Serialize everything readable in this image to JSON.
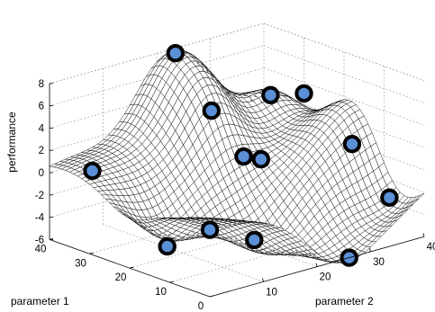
{
  "chart_data": {
    "type": "surface",
    "title": "",
    "zlabel": "performance",
    "xlabel": "parameter 1",
    "ylabel": "parameter 2",
    "zlim": [
      -6,
      8
    ],
    "xlim": [
      0,
      40
    ],
    "ylim": [
      0,
      40
    ],
    "z_ticks": [
      "8",
      "6",
      "4",
      "2",
      "0",
      "-2",
      "-4",
      "-6"
    ],
    "x_ticks": [
      "40",
      "30",
      "20",
      "10",
      "0"
    ],
    "y_ticks": [
      "10",
      "20",
      "30",
      "40"
    ],
    "grid": true,
    "surface_color": "#000000",
    "sample_points": {
      "marker_fill": "#5b8fd6",
      "marker_edge": "#000000",
      "points": [
        {
          "p1": 0,
          "p2": 0,
          "performance": 0
        },
        {
          "p1": 36,
          "p2": 5,
          "performance": 0
        },
        {
          "p1": 38,
          "p2": 22,
          "performance": 8
        },
        {
          "p1": 20,
          "p2": 7,
          "performance": -5
        },
        {
          "p1": 29,
          "p2": 22,
          "performance": 4
        },
        {
          "p1": 25,
          "p2": 25,
          "performance": 0
        },
        {
          "p1": 13,
          "p2": 18,
          "performance": -5
        },
        {
          "p1": 22,
          "p2": 26,
          "performance": 0
        },
        {
          "p1": 33,
          "p2": 36,
          "performance": 3
        },
        {
          "p1": 30,
          "p2": 40,
          "performance": 3
        },
        {
          "p1": 18,
          "p2": 40,
          "performance": 0
        },
        {
          "p1": 6,
          "p2": 38,
          "performance": -3
        },
        {
          "p1": 0,
          "p2": 26,
          "performance": -6
        }
      ]
    }
  }
}
